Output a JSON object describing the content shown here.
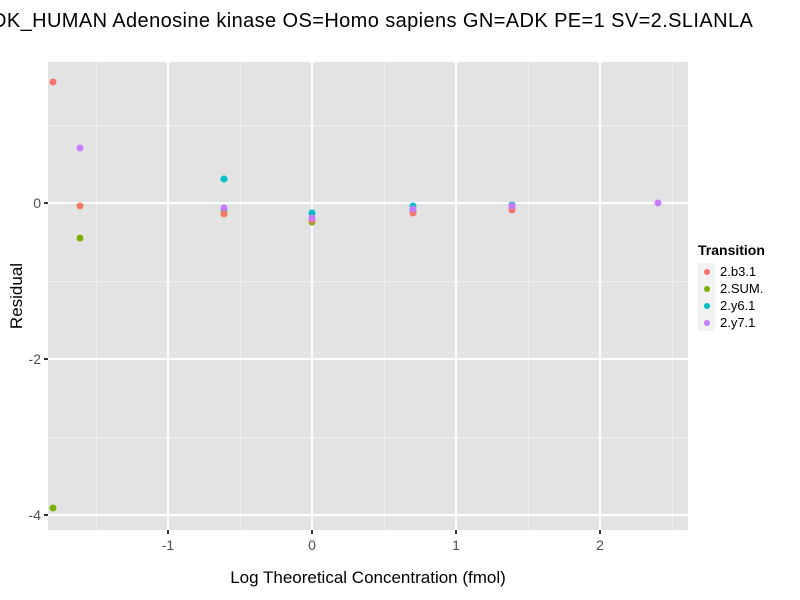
{
  "title": "DK_HUMAN Adenosine kinase OS=Homo sapiens GN=ADK PE=1 SV=2.SLIANLA",
  "legend": {
    "title": "Transition",
    "items": [
      {
        "label": "2.b3.1",
        "color": "#F8766D"
      },
      {
        "label": "2.SUM.",
        "color": "#7CAE00"
      },
      {
        "label": "2.y6.1",
        "color": "#00BFC4"
      },
      {
        "label": "2.y7.1",
        "color": "#C77CFF"
      }
    ]
  },
  "colors": {
    "panel_bg": "#E3E3E3",
    "grid_major": "#FFFFFF",
    "grid_minor": "#EFEFEF",
    "tick_label": "#4D4D4D",
    "legend_key_bg": "#F2F2F2"
  },
  "chart_data": {
    "type": "scatter",
    "title": "DK_HUMAN Adenosine kinase OS=Homo sapiens GN=ADK PE=1 SV=2.SLIANLA",
    "xlabel": "Log Theoretical Concentration (fmol)",
    "ylabel": "Residual",
    "xlim": [
      -1.833,
      2.611
    ],
    "ylim": [
      -4.19,
      1.81
    ],
    "grid": "major-white, minor-faint on gray panel",
    "legend_position": "right",
    "x_ticks": {
      "values": [
        -1,
        0,
        1,
        2
      ],
      "labels": [
        "-1",
        "0",
        "1",
        "2"
      ]
    },
    "y_ticks": {
      "values": [
        0,
        -2,
        -4
      ],
      "labels": [
        "0",
        "-2",
        "-4"
      ]
    },
    "x_minor": [
      -1.5,
      -0.5,
      0.5,
      1.5,
      2.5
    ],
    "y_minor": [
      1,
      -1,
      -3
    ],
    "series": [
      {
        "name": "2.b3.1",
        "color": "#F8766D",
        "z": 2,
        "points": [
          [
            -1.8,
            1.56
          ],
          [
            -1.61,
            -0.04
          ],
          [
            -0.61,
            -0.14
          ],
          [
            0.0,
            -0.22
          ],
          [
            0.7,
            -0.13
          ],
          [
            1.39,
            -0.09
          ]
        ]
      },
      {
        "name": "2.SUM.",
        "color": "#7CAE00",
        "z": 1,
        "points": [
          [
            -1.8,
            -3.91
          ],
          [
            -1.61,
            -0.45
          ],
          [
            -0.61,
            -0.1
          ],
          [
            0.0,
            -0.24
          ],
          [
            0.7,
            -0.11
          ],
          [
            1.39,
            -0.07
          ]
        ]
      },
      {
        "name": "2.y6.1",
        "color": "#00BFC4",
        "z": 3,
        "points": [
          [
            -0.61,
            0.31
          ],
          [
            0.0,
            -0.12
          ],
          [
            0.7,
            -0.03
          ],
          [
            1.39,
            -0.02
          ]
        ]
      },
      {
        "name": "2.y7.1",
        "color": "#C77CFF",
        "z": 4,
        "points": [
          [
            -1.61,
            0.71
          ],
          [
            -0.61,
            -0.06
          ],
          [
            0.0,
            -0.19
          ],
          [
            0.7,
            -0.08
          ],
          [
            1.39,
            -0.04
          ],
          [
            2.4,
            0.0
          ]
        ]
      }
    ]
  }
}
